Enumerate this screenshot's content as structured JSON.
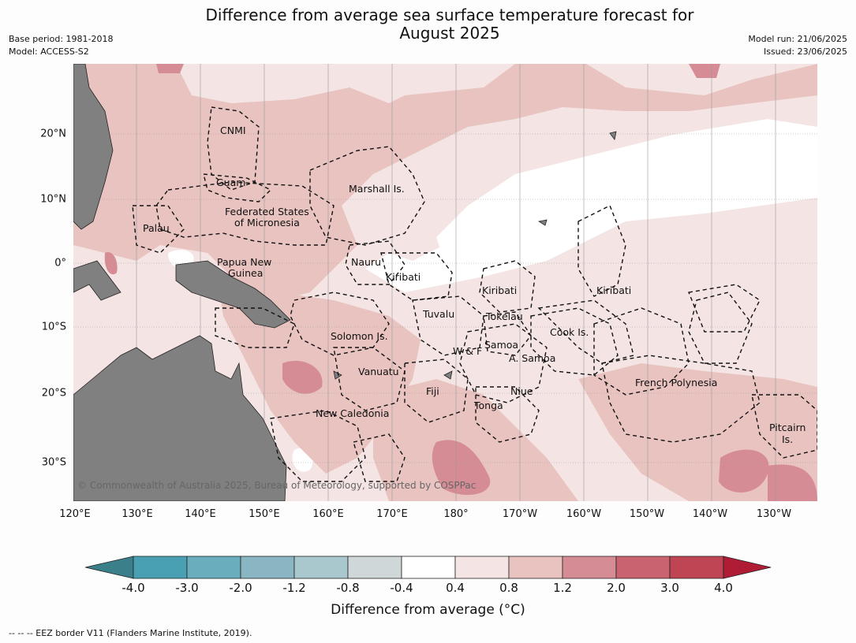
{
  "title_line1": "Difference from average sea surface temperature forecast for",
  "title_line2": "August 2025",
  "meta_left": [
    "Base period: 1981-2018",
    "Model: ACCESS-S2"
  ],
  "meta_right": [
    "Model run: 21/06/2025",
    "Issued: 23/06/2025"
  ],
  "lon_ticks": [
    "120°E",
    "130°E",
    "140°E",
    "150°E",
    "160°E",
    "170°E",
    "180°",
    "170°W",
    "160°W",
    "150°W",
    "140°W",
    "130°W"
  ],
  "lat_ticks": [
    "20°N",
    "10°N",
    "0°",
    "10°S",
    "20°S",
    "30°S"
  ],
  "regions": [
    {
      "name": "CNMI"
    },
    {
      "name": "Guam"
    },
    {
      "name": "Marshall Is."
    },
    {
      "name": "Federated States"
    },
    {
      "name": "of Micronesia"
    },
    {
      "name": "Palau"
    },
    {
      "name": "Papua New"
    },
    {
      "name": "Guinea"
    },
    {
      "name": "Nauru"
    },
    {
      "name": "Kiribati"
    },
    {
      "name": "Kiribati"
    },
    {
      "name": "Kiribati"
    },
    {
      "name": "Tuvalu"
    },
    {
      "name": "Tokelau"
    },
    {
      "name": "Cook Is."
    },
    {
      "name": "Solomon Is."
    },
    {
      "name": "Samoa"
    },
    {
      "name": "W & F"
    },
    {
      "name": "A. Samoa"
    },
    {
      "name": "Vanuatu"
    },
    {
      "name": "Fiji"
    },
    {
      "name": "Niue"
    },
    {
      "name": "French Polynesia"
    },
    {
      "name": "Tonga"
    },
    {
      "name": "New Caledonia"
    },
    {
      "name": "Pitcairn"
    },
    {
      "name": "Is."
    }
  ],
  "copyright": "© Commonwealth of Australia 2025, Bureau of Meteorology, supported by COSPPac",
  "colorbar": {
    "labels": [
      "-4.0",
      "-3.0",
      "-2.0",
      "-1.2",
      "-0.8",
      "-0.4",
      "0.4",
      "0.8",
      "1.2",
      "2.0",
      "3.0",
      "4.0"
    ],
    "colors": [
      "#3b7f8a",
      "#4aa0b3",
      "#6aaebd",
      "#89b6c2",
      "#a8c8cd",
      "#cfd7d9",
      "#ffffff",
      "#f4e5e4",
      "#e8c3c0",
      "#d68c94",
      "#c9636f",
      "#bf4454",
      "#b11c35"
    ],
    "title": "Difference from average (°C)"
  },
  "footer": "--  --  -- EEZ border V11 (Flanders Marine Institute, 2019)."
}
